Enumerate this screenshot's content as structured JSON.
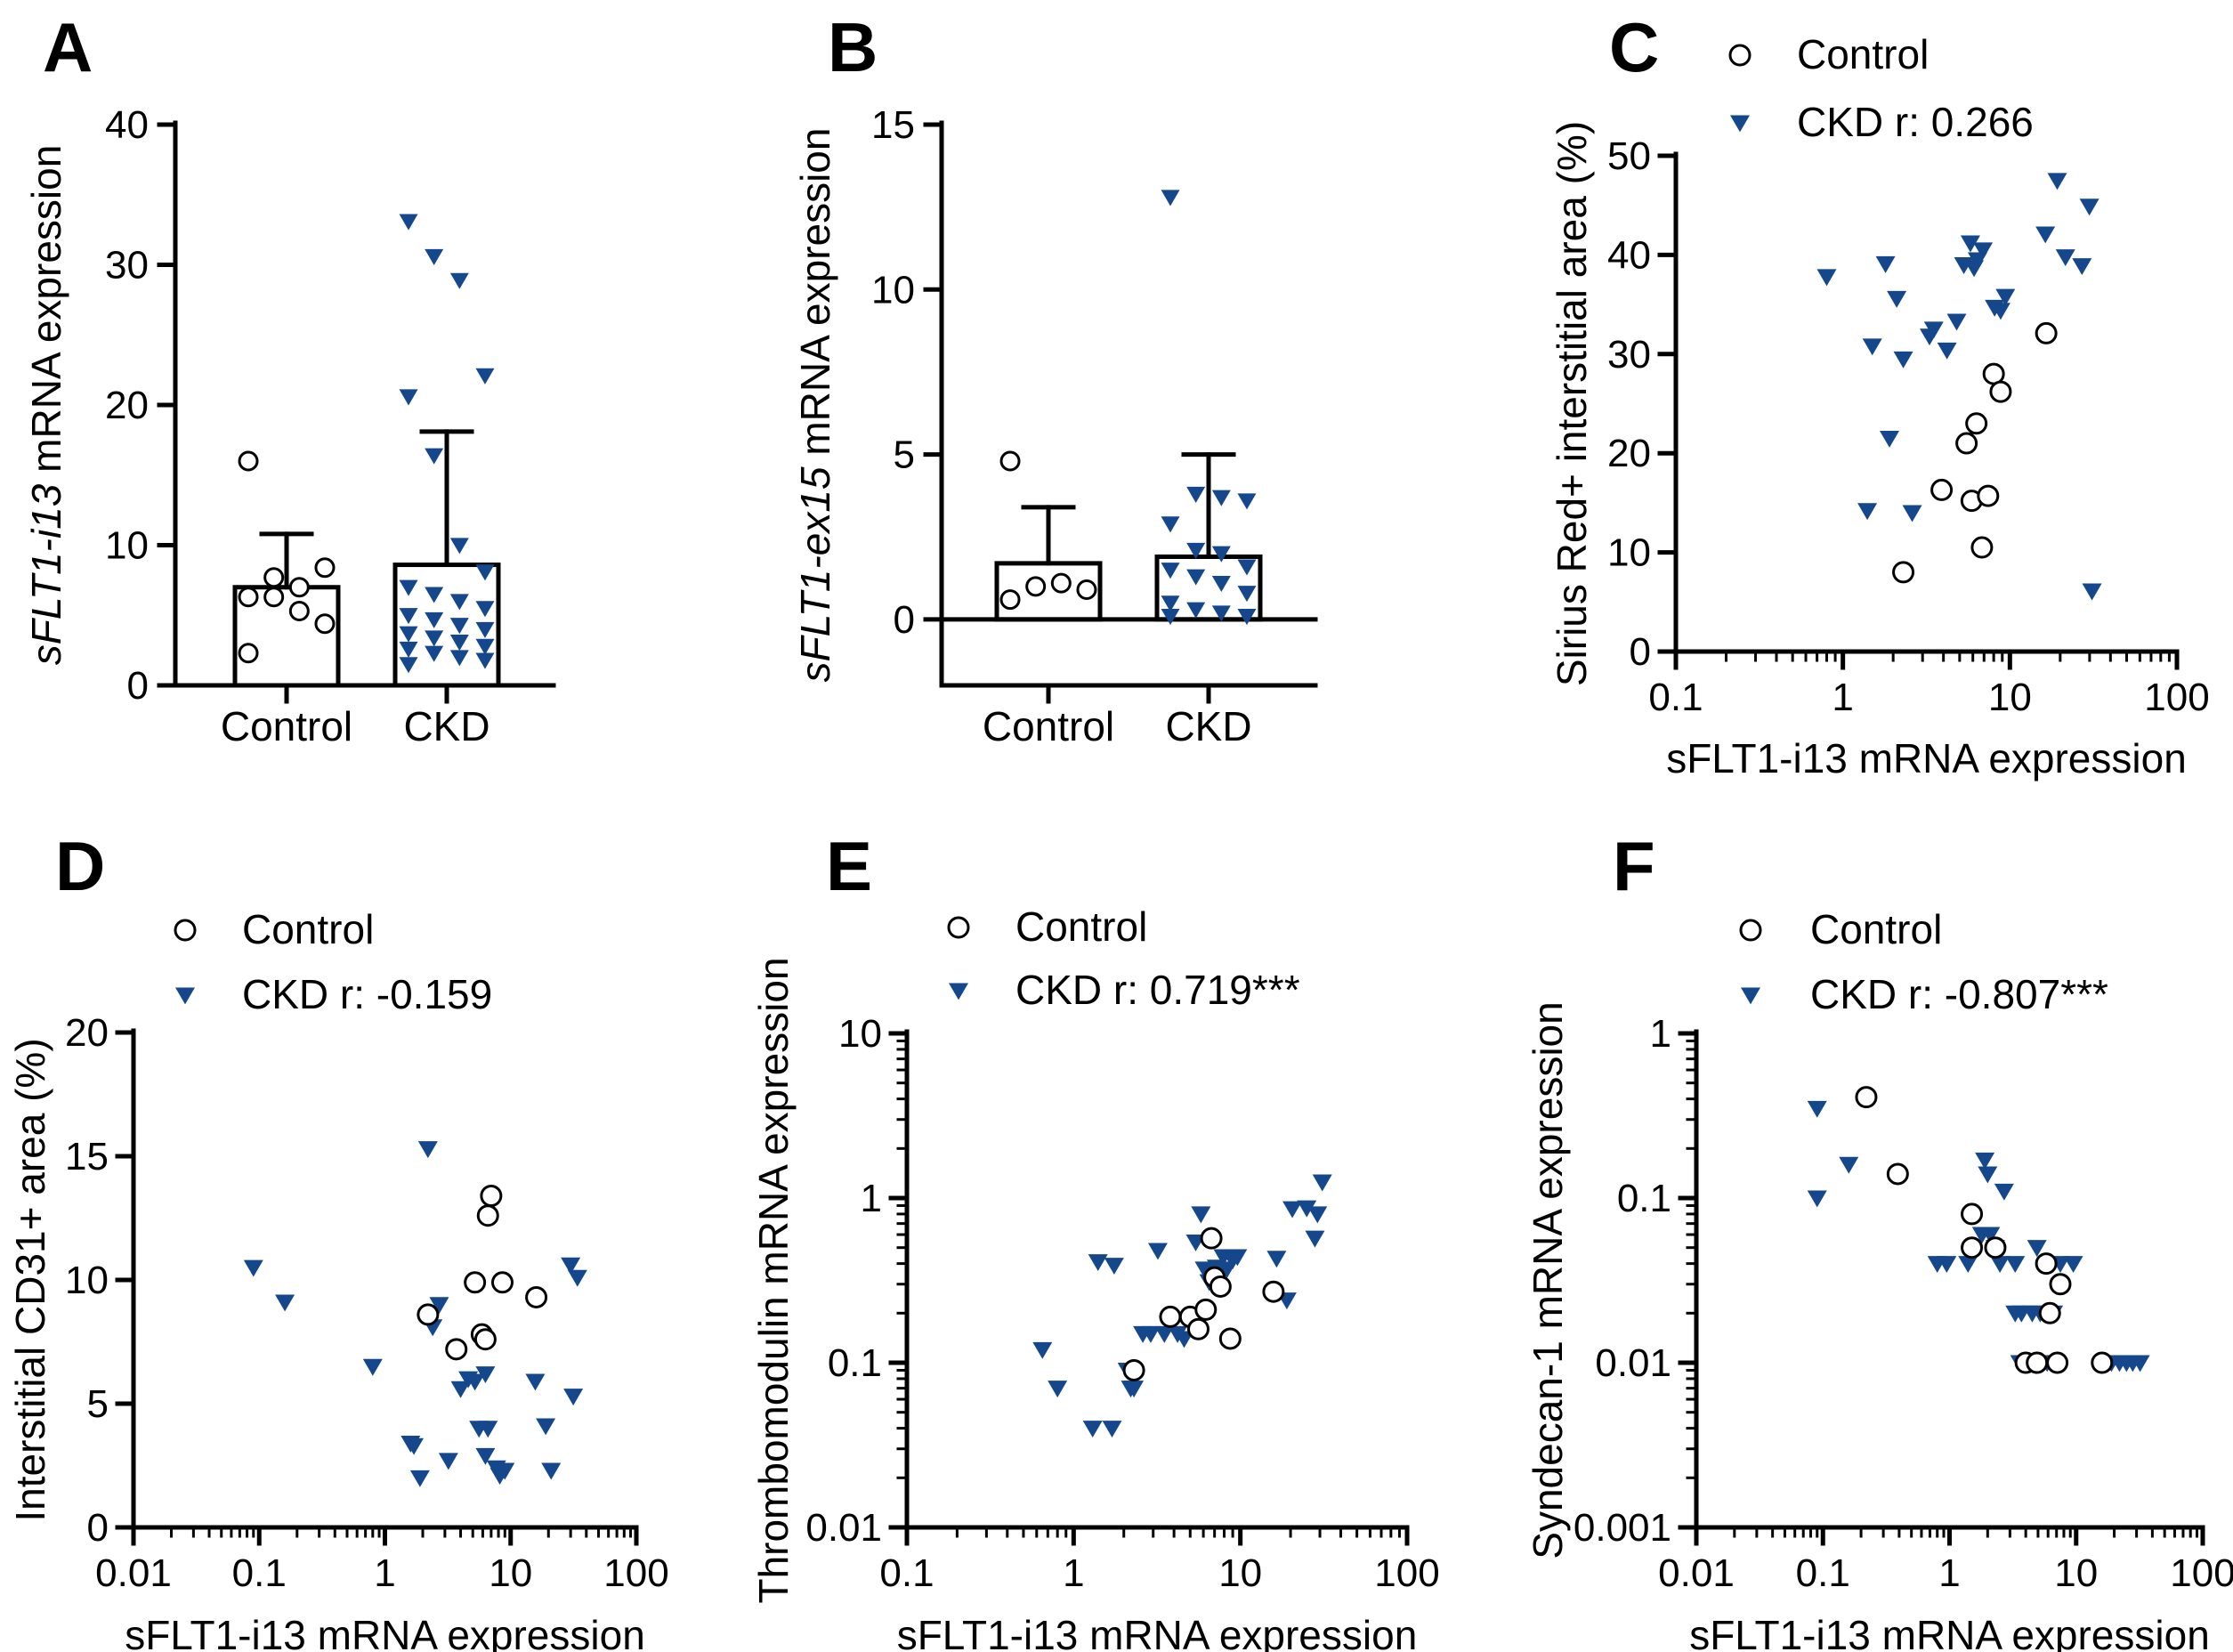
{
  "colors": {
    "ckd": "#14478c",
    "control_stroke": "#000000",
    "axis": "#000000"
  },
  "chart_data": [
    {
      "panel": "A",
      "type": "bar",
      "ylabel_italic": "sFLT1-i13",
      "ylabel_rest": " mRNA expression",
      "ylim": [
        0,
        40
      ],
      "yticks": [
        0,
        10,
        20,
        30,
        40
      ],
      "categories": [
        "Control",
        "CKD"
      ],
      "bar_means": [
        7.0,
        8.6
      ],
      "error_upper": [
        10.8,
        18.1
      ],
      "points": [
        [
          16.0,
          7.7,
          7.0,
          8.4,
          6.3,
          6.3,
          5.3,
          4.4,
          2.3
        ],
        [
          33.1,
          30.6,
          28.9,
          22.1,
          20.6,
          16.4,
          10.0,
          8.1,
          7.0,
          6.5,
          6.0,
          5.5,
          5.0,
          4.7,
          4.3,
          4.0,
          3.7,
          3.4,
          3.1,
          2.8,
          2.6,
          2.3,
          2.0,
          1.8,
          1.5
        ]
      ]
    },
    {
      "panel": "B",
      "type": "bar",
      "ylabel_italic": "sFLT1-ex15",
      "ylabel_rest": " mRNA expression",
      "ylim": [
        -2,
        15
      ],
      "yticks": [
        0,
        5,
        10,
        15
      ],
      "categories": [
        "Control",
        "CKD"
      ],
      "bar_means": [
        1.7,
        1.9
      ],
      "error_upper": [
        3.4,
        5.0
      ],
      "points": [
        [
          4.8,
          1.0,
          1.1,
          0.9,
          0.6
        ],
        [
          12.8,
          3.8,
          3.7,
          3.6,
          2.9,
          2.1,
          2.0,
          1.6,
          1.5,
          1.3,
          1.1,
          0.8,
          0.5,
          0.3,
          0.2,
          0.1,
          0.1
        ]
      ]
    },
    {
      "panel": "C",
      "type": "scatter",
      "xscale": "log",
      "xlim": [
        0.1,
        100
      ],
      "xticks": [
        "0.1",
        "1",
        "10",
        "100"
      ],
      "yscale": "linear",
      "ylim": [
        0,
        50
      ],
      "yticks": [
        "0",
        "10",
        "20",
        "30",
        "40",
        "50"
      ],
      "xlabel": "sFLT1-i13 mRNA expression",
      "ylabel": "Sirius Red+ interstitial area (%)",
      "legend": [
        "Control",
        "CKD r: 0.266"
      ],
      "control": [
        [
          2.3,
          8
        ],
        [
          3.9,
          16.3
        ],
        [
          5.5,
          21
        ],
        [
          5.9,
          15.2
        ],
        [
          6.3,
          23
        ],
        [
          6.8,
          10.5
        ],
        [
          7.4,
          15.7
        ],
        [
          8.0,
          28
        ],
        [
          8.8,
          26.2
        ],
        [
          16.5,
          32.1
        ]
      ],
      "ckd": [
        [
          0.8,
          37.8
        ],
        [
          1.4,
          14.2
        ],
        [
          1.5,
          30.8
        ],
        [
          1.8,
          39.1
        ],
        [
          1.9,
          21.5
        ],
        [
          2.1,
          35.6
        ],
        [
          2.3,
          29.5
        ],
        [
          2.6,
          14
        ],
        [
          3.3,
          31.8
        ],
        [
          3.5,
          32.5
        ],
        [
          4.2,
          30.4
        ],
        [
          4.8,
          33.3
        ],
        [
          5.3,
          39
        ],
        [
          5.8,
          41.2
        ],
        [
          6.1,
          38.7
        ],
        [
          6.4,
          39.5
        ],
        [
          6.9,
          40.5
        ],
        [
          8.1,
          34.7
        ],
        [
          8.8,
          34.4
        ],
        [
          9.4,
          35.8
        ],
        [
          16.3,
          42.1
        ],
        [
          19.2,
          47.5
        ],
        [
          21.5,
          39.8
        ],
        [
          27.0,
          38.9
        ],
        [
          29.9,
          44.9
        ],
        [
          31.0,
          6.1
        ]
      ]
    },
    {
      "panel": "D",
      "type": "scatter",
      "xscale": "log",
      "xlim": [
        0.01,
        100
      ],
      "xticks": [
        "0.01",
        "0.1",
        "1",
        "10",
        "100"
      ],
      "yscale": "linear",
      "ylim": [
        0,
        20
      ],
      "yticks": [
        "0",
        "5",
        "10",
        "15",
        "20"
      ],
      "xlabel": "sFLT1-i13 mRNA expression",
      "ylabel": "Interstitial CD31+ area (%)",
      "legend": [
        "Control",
        "CKD r: -0.159"
      ],
      "control": [
        [
          2.2,
          8.6
        ],
        [
          3.7,
          7.2
        ],
        [
          5.2,
          9.9
        ],
        [
          5.9,
          7.8
        ],
        [
          6.3,
          7.6
        ],
        [
          6.6,
          12.6
        ],
        [
          7.0,
          13.4
        ],
        [
          8.6,
          9.9
        ],
        [
          16.0,
          9.3
        ]
      ],
      "ckd": [
        [
          0.09,
          10.5
        ],
        [
          0.16,
          9.1
        ],
        [
          0.8,
          6.5
        ],
        [
          1.6,
          3.4
        ],
        [
          1.7,
          3.3
        ],
        [
          1.9,
          2
        ],
        [
          2.2,
          15.3
        ],
        [
          2.4,
          8.1
        ],
        [
          2.7,
          9
        ],
        [
          3.2,
          2.7
        ],
        [
          4.0,
          5.6
        ],
        [
          4.6,
          6.0
        ],
        [
          5.2,
          5.9
        ],
        [
          5.6,
          4.0
        ],
        [
          6.3,
          6.2
        ],
        [
          6.3,
          2.9
        ],
        [
          6.6,
          4.0
        ],
        [
          7.7,
          2.4
        ],
        [
          8.2,
          2.1
        ],
        [
          9.0,
          2.3
        ],
        [
          15.7,
          5.9
        ],
        [
          19.0,
          4.1
        ],
        [
          21.0,
          2.3
        ],
        [
          30.0,
          10.6
        ],
        [
          31.5,
          5.3
        ],
        [
          34.0,
          10.1
        ]
      ]
    },
    {
      "panel": "E",
      "type": "scatter",
      "xscale": "log",
      "xlim": [
        0.1,
        100
      ],
      "xticks": [
        "0.1",
        "1",
        "10",
        "100"
      ],
      "yscale": "log",
      "ylim": [
        0.01,
        10
      ],
      "yticks": [
        "0.01",
        "0.1",
        "1",
        "10"
      ],
      "xlabel": "sFLT1-i13 mRNA expression",
      "ylabel": "Thrombomodulin mRNA expression",
      "legend": [
        "Control",
        "CKD r: 0.719***"
      ],
      "control": [
        [
          2.3,
          0.09
        ],
        [
          3.8,
          0.19
        ],
        [
          5.0,
          0.19
        ],
        [
          5.6,
          0.16
        ],
        [
          6.2,
          0.21
        ],
        [
          6.7,
          0.57
        ],
        [
          7.0,
          0.33
        ],
        [
          7.6,
          0.29
        ],
        [
          8.7,
          0.14
        ],
        [
          15.8,
          0.27
        ]
      ],
      "ckd": [
        [
          0.65,
          0.12
        ],
        [
          0.8,
          0.07
        ],
        [
          1.3,
          0.04
        ],
        [
          1.4,
          0.41
        ],
        [
          1.7,
          0.04
        ],
        [
          1.75,
          0.39
        ],
        [
          2.1,
          0.09
        ],
        [
          2.2,
          0.07
        ],
        [
          2.3,
          0.07
        ],
        [
          2.6,
          0.15
        ],
        [
          2.9,
          0.15
        ],
        [
          3.2,
          0.48
        ],
        [
          3.5,
          0.15
        ],
        [
          4.2,
          0.15
        ],
        [
          4.6,
          0.14
        ],
        [
          5.2,
          0.16
        ],
        [
          5.4,
          0.54
        ],
        [
          5.8,
          0.8
        ],
        [
          6.1,
          0.37
        ],
        [
          6.5,
          0.31
        ],
        [
          7.2,
          0.38
        ],
        [
          7.9,
          0.44
        ],
        [
          8.3,
          0.37
        ],
        [
          9.0,
          0.42
        ],
        [
          9.6,
          0.44
        ],
        [
          16.5,
          0.43
        ],
        [
          19.0,
          0.24
        ],
        [
          20.5,
          0.86
        ],
        [
          25.0,
          0.87
        ],
        [
          28.0,
          0.57
        ],
        [
          29.0,
          0.8
        ],
        [
          31.0,
          1.25
        ]
      ]
    },
    {
      "panel": "F",
      "type": "scatter",
      "xscale": "log",
      "xlim": [
        0.01,
        100
      ],
      "xticks": [
        "0.01",
        "0.1",
        "1",
        "10",
        "100"
      ],
      "yscale": "log",
      "ylim": [
        0.001,
        1
      ],
      "yticks": [
        "0.001",
        "0.01",
        "0.1",
        "1"
      ],
      "xlabel": "sFLT1-i13 mRNA expression",
      "ylabel": "Syndecan-1 mRNA expression",
      "legend": [
        "Control",
        "CKD r: -0.807***"
      ],
      "control": [
        [
          0.22,
          0.41
        ],
        [
          0.39,
          0.14
        ],
        [
          1.5,
          0.08
        ],
        [
          1.5,
          0.05
        ],
        [
          2.3,
          0.05
        ],
        [
          4.0,
          0.01
        ],
        [
          4.9,
          0.01
        ],
        [
          5.8,
          0.04
        ],
        [
          6.2,
          0.02
        ],
        [
          7.1,
          0.01
        ],
        [
          7.5,
          0.03
        ],
        [
          16.0,
          0.01
        ]
      ],
      "ckd": [
        [
          0.09,
          0.35
        ],
        [
          0.09,
          0.1
        ],
        [
          0.16,
          0.16
        ],
        [
          0.8,
          0.04
        ],
        [
          0.95,
          0.04
        ],
        [
          1.4,
          0.04
        ],
        [
          1.8,
          0.06
        ],
        [
          1.9,
          0.17
        ],
        [
          2.0,
          0.14
        ],
        [
          2.1,
          0.06
        ],
        [
          2.3,
          0.05
        ],
        [
          2.5,
          0.04
        ],
        [
          2.7,
          0.11
        ],
        [
          3.3,
          0.04
        ],
        [
          3.3,
          0.02
        ],
        [
          3.6,
          0.01
        ],
        [
          3.7,
          0.02
        ],
        [
          4.2,
          0.01
        ],
        [
          4.5,
          0.02
        ],
        [
          4.9,
          0.05
        ],
        [
          5.2,
          0.02
        ],
        [
          5.5,
          0.01
        ],
        [
          5.9,
          0.01
        ],
        [
          6.6,
          0.02
        ],
        [
          7.5,
          0.04
        ],
        [
          9.5,
          0.04
        ],
        [
          19.0,
          0.01
        ],
        [
          22.0,
          0.01
        ],
        [
          25.0,
          0.01
        ],
        [
          28.0,
          0.01
        ],
        [
          32.0,
          0.01
        ]
      ]
    }
  ]
}
